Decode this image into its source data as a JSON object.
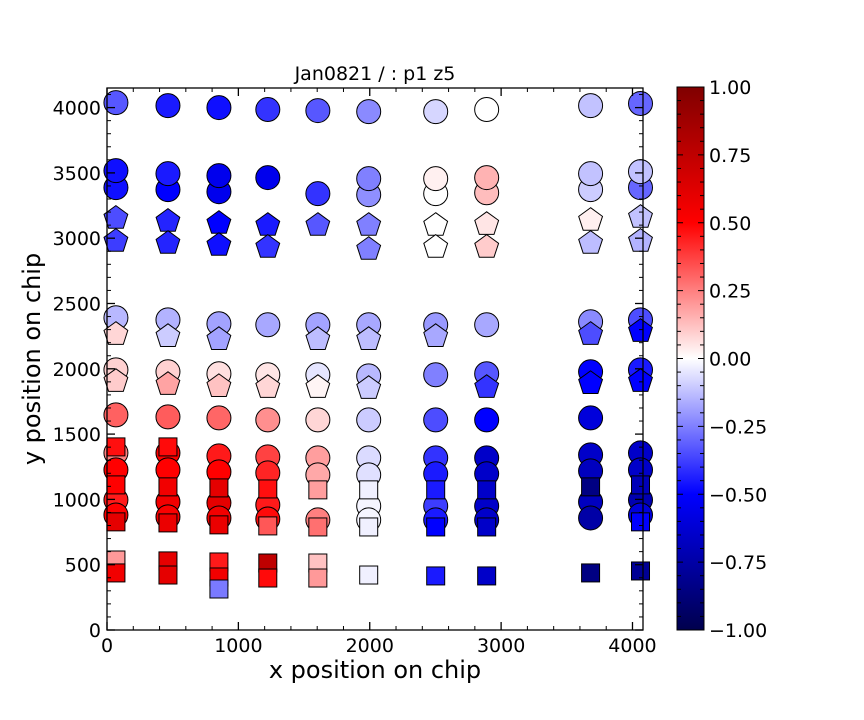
{
  "chart_data": {
    "type": "scatter",
    "title": "Jan0821 / : p1 z5",
    "xlabel": "x position on chip",
    "ylabel": "y position on chip",
    "xlim": [
      0,
      4080
    ],
    "ylim": [
      0,
      4150
    ],
    "xticks": [
      0,
      1000,
      2000,
      3000,
      4000
    ],
    "yticks": [
      0,
      500,
      1000,
      1500,
      2000,
      2500,
      3000,
      3500,
      4000
    ],
    "grid": false,
    "colorbar": {
      "colormap": "seismic",
      "range": [
        -1,
        1
      ],
      "ticks": [
        "1.00",
        "0.75",
        "0.50",
        "0.25",
        "0.00",
        "−0.25",
        "−0.50",
        "−0.75",
        "−1.00"
      ],
      "tick_values": [
        1,
        0.75,
        0.5,
        0.25,
        0,
        -0.25,
        -0.5,
        -0.75,
        -1
      ]
    },
    "point_fields": [
      "x",
      "y",
      "marker",
      "value"
    ],
    "points": [
      [
        68,
        4038,
        "o",
        -0.33
      ],
      [
        464,
        4015,
        "o",
        -0.45
      ],
      [
        852,
        4000,
        "o",
        -0.47
      ],
      [
        1224,
        3985,
        "o",
        -0.4
      ],
      [
        1605,
        3977,
        "o",
        -0.33
      ],
      [
        1992,
        3969,
        "o",
        -0.23
      ],
      [
        2502,
        3969,
        "o",
        -0.08
      ],
      [
        2890,
        3985,
        "o",
        0.0
      ],
      [
        3681,
        4015,
        "o",
        -0.12
      ],
      [
        4061,
        4031,
        "o",
        -0.3
      ],
      [
        68,
        3387,
        "o",
        -0.47
      ],
      [
        464,
        3372,
        "o",
        -0.5
      ],
      [
        852,
        3356,
        "o",
        -0.55
      ],
      [
        1605,
        3341,
        "o",
        -0.4
      ],
      [
        1992,
        3333,
        "o",
        -0.22
      ],
      [
        2502,
        3341,
        "o",
        0.0
      ],
      [
        2890,
        3348,
        "o",
        0.13
      ],
      [
        3681,
        3372,
        "o",
        -0.1
      ],
      [
        4061,
        3387,
        "o",
        -0.3
      ],
      [
        68,
        3517,
        "o",
        -0.47
      ],
      [
        464,
        3494,
        "o",
        -0.45
      ],
      [
        852,
        3479,
        "o",
        -0.55
      ],
      [
        1224,
        3464,
        "o",
        -0.55
      ],
      [
        1992,
        3456,
        "o",
        -0.25
      ],
      [
        2502,
        3456,
        "o",
        0.03
      ],
      [
        2890,
        3464,
        "o",
        0.15
      ],
      [
        3681,
        3494,
        "o",
        -0.12
      ],
      [
        4061,
        3510,
        "o",
        -0.12
      ],
      [
        68,
        3165,
        "p",
        -0.35
      ],
      [
        464,
        3142,
        "p",
        -0.43
      ],
      [
        852,
        3126,
        "p",
        -0.5
      ],
      [
        1224,
        3111,
        "p",
        -0.45
      ],
      [
        1605,
        3111,
        "p",
        -0.33
      ],
      [
        1992,
        3111,
        "p",
        -0.25
      ],
      [
        2502,
        3111,
        "p",
        0.0
      ],
      [
        2890,
        3118,
        "p",
        0.05
      ],
      [
        3681,
        3149,
        "p",
        0.03
      ],
      [
        4061,
        3172,
        "p",
        -0.12
      ],
      [
        68,
        2989,
        "p",
        -0.38
      ],
      [
        464,
        2973,
        "p",
        -0.43
      ],
      [
        852,
        2958,
        "p",
        -0.47
      ],
      [
        1224,
        2943,
        "p",
        -0.4
      ],
      [
        1992,
        2927,
        "p",
        -0.25
      ],
      [
        2502,
        2943,
        "p",
        0.0
      ],
      [
        2890,
        2943,
        "p",
        0.1
      ],
      [
        3681,
        2973,
        "p",
        -0.13
      ],
      [
        4061,
        2989,
        "p",
        -0.15
      ],
      [
        68,
        2391,
        "o",
        -0.14
      ],
      [
        464,
        2375,
        "o",
        -0.15
      ],
      [
        852,
        2345,
        "o",
        -0.18
      ],
      [
        1224,
        2337,
        "o",
        -0.17
      ],
      [
        1605,
        2337,
        "o",
        -0.18
      ],
      [
        1992,
        2337,
        "o",
        -0.17
      ],
      [
        2502,
        2337,
        "o",
        -0.2
      ],
      [
        2890,
        2337,
        "o",
        -0.17
      ],
      [
        3681,
        2360,
        "o",
        -0.23
      ],
      [
        4061,
        2375,
        "o",
        -0.35
      ],
      [
        68,
        2276,
        "p",
        0.08
      ],
      [
        464,
        2260,
        "p",
        -0.1
      ],
      [
        852,
        2237,
        "p",
        -0.18
      ],
      [
        1605,
        2237,
        "p",
        -0.13
      ],
      [
        1992,
        2237,
        "p",
        -0.13
      ],
      [
        2502,
        2260,
        "p",
        -0.17
      ],
      [
        3681,
        2276,
        "p",
        -0.35
      ],
      [
        4061,
        2299,
        "p",
        -0.5
      ],
      [
        68,
        1992,
        "o",
        0.09
      ],
      [
        464,
        1977,
        "o",
        0.09
      ],
      [
        852,
        1962,
        "o",
        0.06
      ],
      [
        1224,
        1954,
        "o",
        0.05
      ],
      [
        1605,
        1954,
        "o",
        -0.05
      ],
      [
        1992,
        1946,
        "o",
        -0.14
      ],
      [
        2502,
        1954,
        "o",
        -0.25
      ],
      [
        2890,
        1962,
        "o",
        -0.33
      ],
      [
        3681,
        1977,
        "o",
        -0.5
      ],
      [
        4061,
        1992,
        "o",
        -0.45
      ],
      [
        68,
        1916,
        "p",
        0.1
      ],
      [
        464,
        1893,
        "p",
        0.18
      ],
      [
        852,
        1877,
        "p",
        0.12
      ],
      [
        1224,
        1870,
        "p",
        0.08
      ],
      [
        1605,
        1870,
        "p",
        0.02
      ],
      [
        1992,
        1862,
        "p",
        -0.1
      ],
      [
        2890,
        1870,
        "p",
        -0.4
      ],
      [
        3681,
        1900,
        "p",
        -0.5
      ],
      [
        4061,
        1916,
        "p",
        -0.5
      ],
      [
        68,
        1647,
        "o",
        0.31
      ],
      [
        464,
        1632,
        "o",
        0.32
      ],
      [
        852,
        1624,
        "o",
        0.3
      ],
      [
        1224,
        1609,
        "o",
        0.22
      ],
      [
        1605,
        1609,
        "o",
        0.08
      ],
      [
        1992,
        1609,
        "o",
        -0.1
      ],
      [
        2502,
        1609,
        "o",
        -0.35
      ],
      [
        2890,
        1609,
        "o",
        -0.5
      ],
      [
        3681,
        1624,
        "o",
        -0.6
      ],
      [
        68,
        1356,
        "o",
        0.25
      ],
      [
        464,
        1356,
        "o",
        0.5
      ],
      [
        852,
        1333,
        "o",
        0.45
      ],
      [
        1224,
        1326,
        "o",
        0.37
      ],
      [
        1605,
        1318,
        "o",
        0.19
      ],
      [
        1992,
        1318,
        "o",
        -0.07
      ],
      [
        2502,
        1318,
        "o",
        -0.4
      ],
      [
        2890,
        1318,
        "o",
        -0.65
      ],
      [
        3681,
        1341,
        "o",
        -0.65
      ],
      [
        4061,
        1356,
        "o",
        -0.65
      ],
      [
        68,
        1226,
        "o",
        0.5
      ],
      [
        464,
        1226,
        "o",
        0.5
      ],
      [
        852,
        1211,
        "o",
        0.5
      ],
      [
        1224,
        1203,
        "o",
        0.43
      ],
      [
        1605,
        1188,
        "o",
        0.17
      ],
      [
        1992,
        1188,
        "o",
        -0.06
      ],
      [
        2502,
        1196,
        "o",
        -0.45
      ],
      [
        2890,
        1196,
        "o",
        -0.65
      ],
      [
        3681,
        1218,
        "o",
        -0.68
      ],
      [
        4061,
        1226,
        "o",
        -0.65
      ],
      [
        68,
        996,
        "o",
        0.45
      ],
      [
        464,
        981,
        "o",
        0.55
      ],
      [
        852,
        973,
        "o",
        0.6
      ],
      [
        1224,
        958,
        "o",
        0.45
      ],
      [
        1992,
        950,
        "o",
        -0.02
      ],
      [
        2502,
        950,
        "o",
        -0.38
      ],
      [
        2890,
        950,
        "o",
        -0.65
      ],
      [
        3681,
        981,
        "o",
        -0.68
      ],
      [
        4061,
        996,
        "o",
        -0.72
      ],
      [
        68,
        881,
        "o",
        0.5
      ],
      [
        464,
        866,
        "o",
        0.52
      ],
      [
        852,
        858,
        "o",
        0.55
      ],
      [
        1224,
        850,
        "o",
        0.48
      ],
      [
        1605,
        843,
        "o",
        0.25
      ],
      [
        1992,
        843,
        "o",
        -0.02
      ],
      [
        2502,
        843,
        "o",
        -0.45
      ],
      [
        2890,
        843,
        "o",
        -0.65
      ],
      [
        3681,
        858,
        "o",
        -0.75
      ],
      [
        4061,
        881,
        "o",
        -0.6
      ],
      [
        68,
        1402,
        "s",
        0.47
      ],
      [
        464,
        1402,
        "s",
        0.48
      ],
      [
        68,
        1111,
        "s",
        0.5
      ],
      [
        464,
        1096,
        "s",
        0.55
      ],
      [
        852,
        1088,
        "s",
        0.6
      ],
      [
        1224,
        1080,
        "s",
        0.47
      ],
      [
        1605,
        1073,
        "s",
        0.19
      ],
      [
        1992,
        1073,
        "s",
        -0.03
      ],
      [
        2502,
        1073,
        "s",
        -0.45
      ],
      [
        2890,
        1073,
        "s",
        -0.65
      ],
      [
        3681,
        1096,
        "s",
        -0.85
      ],
      [
        4061,
        1111,
        "s",
        -0.7
      ],
      [
        68,
        828,
        "s",
        0.6
      ],
      [
        464,
        820,
        "s",
        0.58
      ],
      [
        852,
        805,
        "s",
        0.58
      ],
      [
        1224,
        797,
        "s",
        0.33
      ],
      [
        1605,
        789,
        "s",
        0.28
      ],
      [
        1992,
        789,
        "s",
        -0.03
      ],
      [
        2502,
        789,
        "s",
        -0.5
      ],
      [
        2890,
        789,
        "s",
        -0.65
      ],
      [
        4061,
        828,
        "s",
        -0.5
      ],
      [
        68,
        536,
        "s",
        0.2
      ],
      [
        464,
        529,
        "s",
        0.6
      ],
      [
        852,
        521,
        "s",
        0.45
      ],
      [
        1224,
        513,
        "s",
        0.75
      ],
      [
        1605,
        513,
        "s",
        0.12
      ],
      [
        68,
        437,
        "s",
        0.55
      ],
      [
        464,
        421,
        "s",
        0.6
      ],
      [
        852,
        406,
        "s",
        0.55
      ],
      [
        1224,
        398,
        "s",
        0.48
      ],
      [
        1605,
        398,
        "s",
        0.2
      ],
      [
        1992,
        421,
        "s",
        -0.03
      ],
      [
        2502,
        414,
        "s",
        -0.45
      ],
      [
        2890,
        414,
        "s",
        -0.65
      ],
      [
        3681,
        437,
        "s",
        -0.85
      ],
      [
        4061,
        452,
        "s",
        -0.8
      ],
      [
        852,
        314,
        "s",
        -0.26
      ]
    ]
  }
}
